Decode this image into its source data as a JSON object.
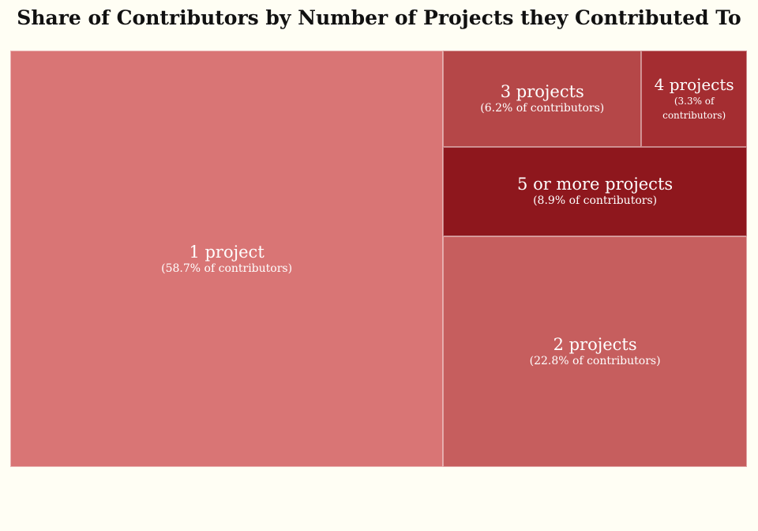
{
  "chart_data": {
    "type": "treemap",
    "title": "Share of Contributors by Number of Projects they Contributed To",
    "unit": "% of contributors",
    "items": [
      {
        "label": "1 project",
        "value": 58.7,
        "sublabel": "(58.7% of contributors)",
        "color": "#d97575"
      },
      {
        "label": "2 projects",
        "value": 22.8,
        "sublabel": "(22.8% of contributors)",
        "color": "#c65e5e"
      },
      {
        "label": "3 projects",
        "value": 6.2,
        "sublabel": "(6.2% of contributors)",
        "color": "#b54748"
      },
      {
        "label": "4 projects",
        "value": 3.3,
        "sublabel": "(3.3% of contributors)",
        "color": "#a42d31"
      },
      {
        "label": "5 or more projects",
        "value": 8.9,
        "sublabel": "(8.9% of contributors)",
        "color": "#8e171d"
      }
    ]
  }
}
